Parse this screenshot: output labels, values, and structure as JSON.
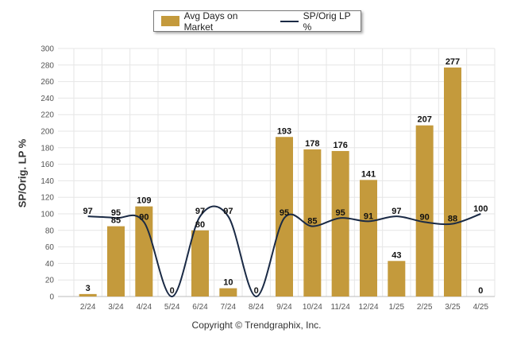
{
  "legend": {
    "bar_label": "Avg Days on Market",
    "line_label": "SP/Orig LP %"
  },
  "copyright": "Copyright © Trendgraphix, Inc.",
  "colors": {
    "bar": "#c49a3c",
    "line": "#1a2a45",
    "grid": "#e6e6e6",
    "axis_text": "#555555",
    "label_text": "#111111"
  },
  "chart_data": {
    "type": "bar",
    "title": "",
    "xlabel": "",
    "ylabel": "SP/Orig. LP %",
    "ylim": [
      0,
      300
    ],
    "yticks": [
      0,
      20,
      40,
      60,
      80,
      100,
      120,
      140,
      160,
      180,
      200,
      220,
      240,
      260,
      280,
      300
    ],
    "grid": true,
    "legend_position": "top-center",
    "categories": [
      "2/24",
      "3/24",
      "4/24",
      "5/24",
      "6/24",
      "7/24",
      "8/24",
      "9/24",
      "10/24",
      "11/24",
      "12/24",
      "1/25",
      "2/25",
      "3/25",
      "4/25"
    ],
    "series": [
      {
        "name": "Avg Days on Market",
        "type": "bar",
        "values": [
          3,
          85,
          109,
          0,
          80,
          10,
          0,
          193,
          178,
          176,
          141,
          43,
          207,
          277,
          0
        ]
      },
      {
        "name": "SP/Orig LP %",
        "type": "line",
        "values": [
          97,
          95,
          90,
          0,
          97,
          97,
          0,
          95,
          85,
          95,
          91,
          97,
          90,
          88,
          100
        ]
      }
    ]
  }
}
